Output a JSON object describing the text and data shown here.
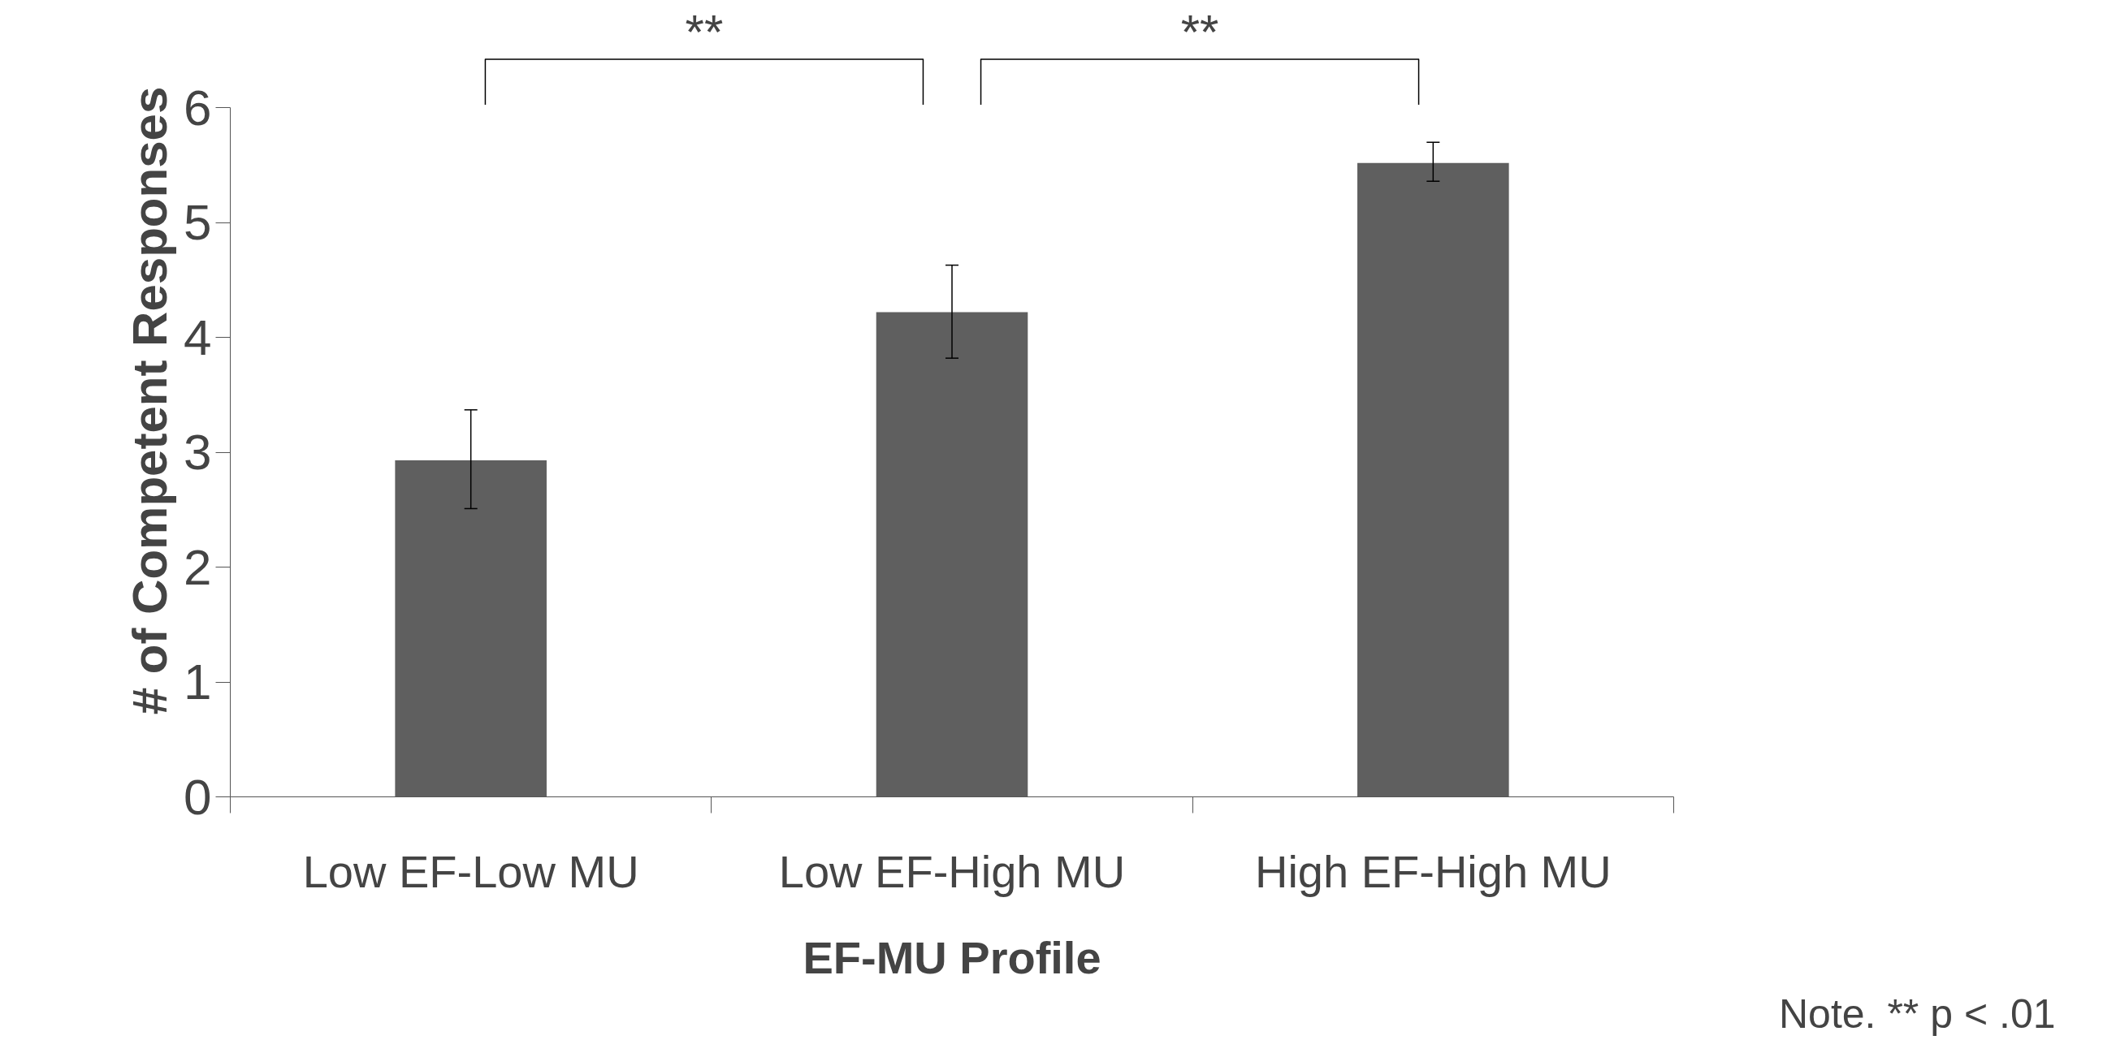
{
  "chart_data": {
    "type": "bar",
    "xlabel": "EF-MU Profile",
    "ylabel": "# of Competent Responses",
    "categories": [
      "Low EF-Low MU",
      "Low EF-High MU",
      "High EF-High MU"
    ],
    "values": [
      2.93,
      4.22,
      5.52
    ],
    "errors": [
      [
        2.51,
        3.37
      ],
      [
        3.82,
        4.63
      ],
      [
        5.36,
        5.7
      ]
    ],
    "color": "#5f5f5f",
    "ylim": [
      0,
      6
    ],
    "yticks": [
      0,
      1,
      2,
      3,
      4,
      5,
      6
    ],
    "grid": false,
    "annotations": [
      "**",
      "**",
      "Note. ** p < .01"
    ]
  }
}
